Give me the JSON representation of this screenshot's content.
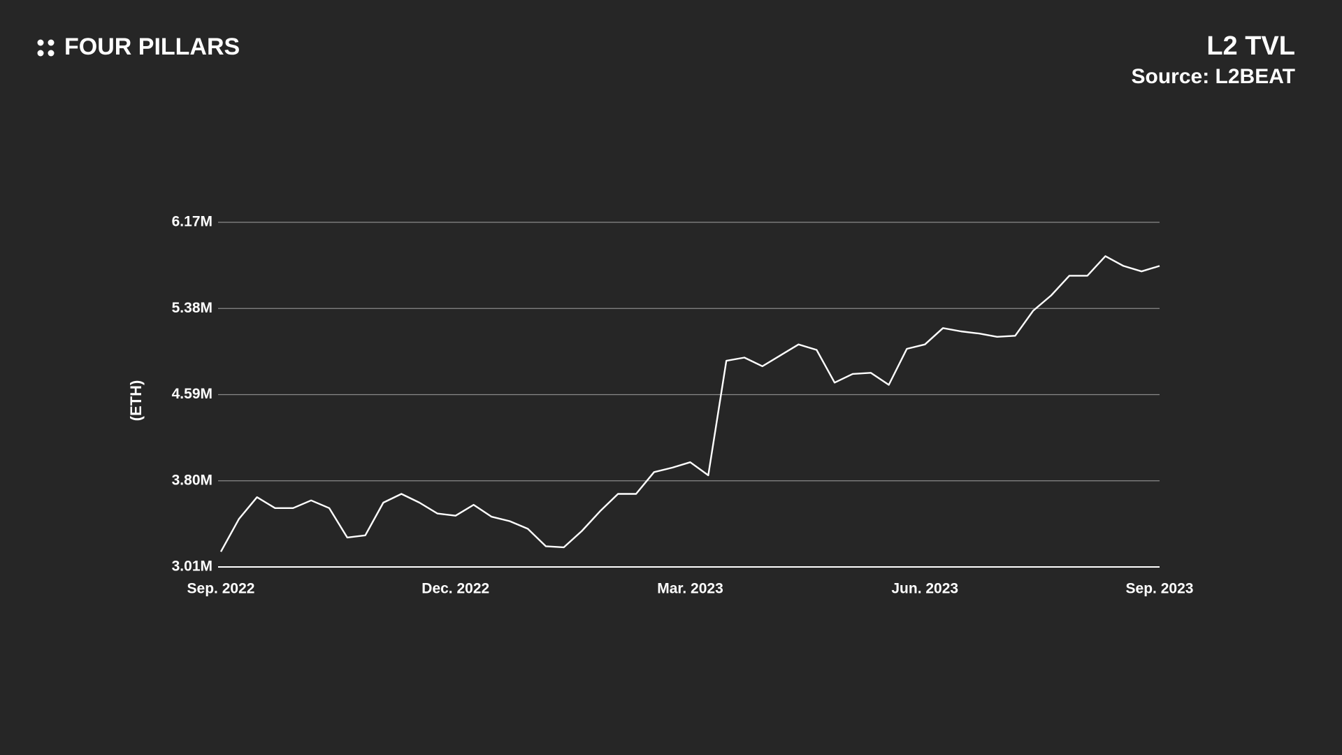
{
  "header": {
    "brand": "FOUR PILLARS"
  },
  "chart_data": {
    "type": "line",
    "title": "L2 TVL",
    "subtitle": "Source: L2BEAT",
    "y_label": "(ETH)",
    "categories": [
      "Sep. 2022",
      null,
      null,
      null,
      null,
      null,
      null,
      null,
      null,
      null,
      null,
      null,
      null,
      "Dec. 2022",
      null,
      null,
      null,
      null,
      null,
      null,
      null,
      null,
      null,
      null,
      null,
      null,
      "Mar. 2023",
      null,
      null,
      null,
      null,
      null,
      null,
      null,
      null,
      null,
      null,
      null,
      null,
      "Jun. 2023",
      null,
      null,
      null,
      null,
      null,
      null,
      null,
      null,
      null,
      null,
      null,
      null,
      "Sep. 2023"
    ],
    "series": [
      {
        "name": "L2 TVL",
        "color": "#ffffff",
        "values": [
          3150000,
          3450000,
          3650000,
          3550000,
          3550000,
          3620000,
          3550000,
          3280000,
          3300000,
          3600000,
          3680000,
          3600000,
          3500000,
          3480000,
          3580000,
          3470000,
          3430000,
          3360000,
          3200000,
          3190000,
          3340000,
          3520000,
          3680000,
          3680000,
          3880000,
          3920000,
          3970000,
          3850000,
          4900000,
          4930000,
          4850000,
          4950000,
          5050000,
          5000000,
          4700000,
          4780000,
          4790000,
          4680000,
          5010000,
          5050000,
          5200000,
          5170000,
          5150000,
          5120000,
          5130000,
          5360000,
          5500000,
          5680000,
          5680000,
          5860000,
          5770000,
          5720000,
          5770000
        ]
      }
    ],
    "ylim": [
      3010000,
      6170000
    ],
    "yticks": [
      {
        "value": 3010000,
        "label": "3.01M"
      },
      {
        "value": 3800000,
        "label": "3.80M"
      },
      {
        "value": 4590000,
        "label": "4.59M"
      },
      {
        "value": 5380000,
        "label": "5.38M"
      },
      {
        "value": 6170000,
        "label": "6.17M"
      }
    ],
    "grid": true
  }
}
